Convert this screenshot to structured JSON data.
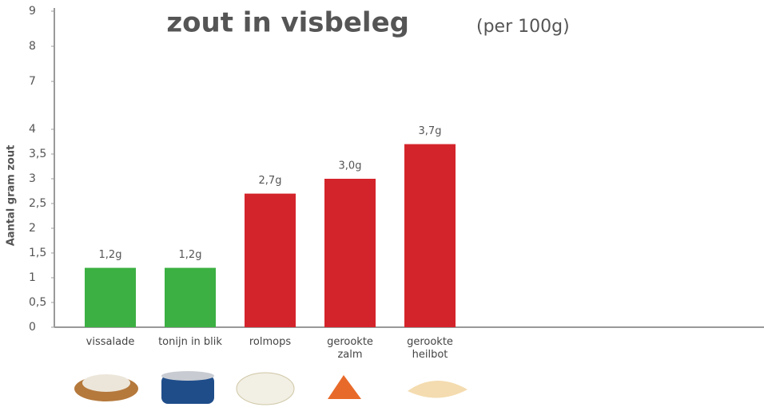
{
  "chart_data": {
    "type": "bar",
    "title": "zout in visbeleg",
    "subtitle": "(per 100g)",
    "y_label": "Aantal gram zout",
    "categories": [
      "vissalade",
      "tonijn in blik",
      "rolmops",
      "gerookte zalm",
      "gerookte heilbot"
    ],
    "values": [
      1.2,
      1.2,
      2.7,
      3.0,
      3.7
    ],
    "value_labels": [
      "1,2g",
      "1,2g",
      "2,7g",
      "3,0g",
      "3,7g"
    ],
    "colors": [
      "#3cb043",
      "#3cb043",
      "#d4242b",
      "#d4242b",
      "#d4242b"
    ],
    "ylim": [
      0,
      9
    ],
    "yticks": [
      0,
      {
        "value": 0.5,
        "label": "0,5"
      },
      1,
      {
        "value": 1.5,
        "label": "1,5"
      },
      2,
      {
        "value": 2.5,
        "label": "2,5"
      },
      3,
      {
        "value": 3.5,
        "label": "3,5"
      },
      4,
      7,
      8,
      9
    ]
  }
}
